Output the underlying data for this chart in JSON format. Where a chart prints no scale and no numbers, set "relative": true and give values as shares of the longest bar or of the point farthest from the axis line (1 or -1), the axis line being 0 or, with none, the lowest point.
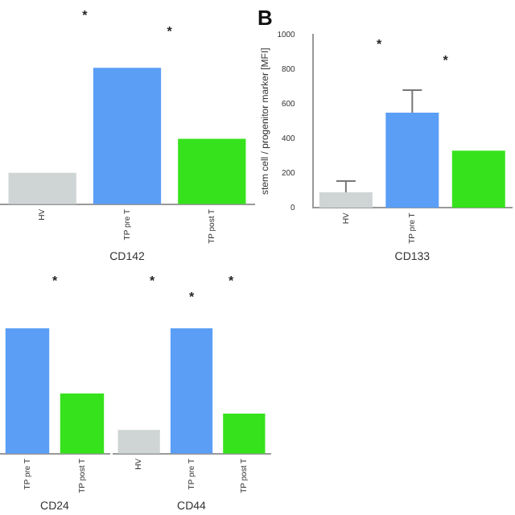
{
  "chart_data": [
    {
      "type": "bar",
      "relative": true,
      "categories": [
        "HV",
        "TP pre T",
        "TP post T"
      ],
      "xlabel": "CD142",
      "colors": [
        "#cfd4d4",
        "#5a9ef6",
        "#36e21c"
      ],
      "values": [
        0.23,
        1,
        0.48
      ],
      "annotations": [
        "*",
        "*"
      ],
      "grid": false,
      "legend": false
    },
    {
      "type": "bar",
      "title": "B",
      "categories": [
        "HV",
        "TP pre T",
        null
      ],
      "xlabel": "CD133",
      "ylabel": "stem cell / progenitor marker [MFI]",
      "colors": [
        "#cfd4d4",
        "#5a9ef6",
        "#36e21c"
      ],
      "values": [
        90,
        550,
        330
      ],
      "errors": [
        [
          90,
          155
        ],
        [
          550,
          680
        ],
        null
      ],
      "ylim": [
        0,
        1000
      ],
      "yticks": [
        0,
        200,
        400,
        600,
        800,
        1000
      ],
      "annotations": [
        "*",
        "*"
      ],
      "grid": false,
      "legend": false
    },
    {
      "type": "bar",
      "relative": true,
      "categories": [
        "TP pre T",
        "TP post T"
      ],
      "xlabel": "CD24",
      "colors": [
        "#5a9ef6",
        "#36e21c"
      ],
      "values": [
        1,
        0.48
      ],
      "annotations": [
        "*"
      ],
      "grid": false,
      "legend": false
    },
    {
      "type": "bar",
      "relative": true,
      "categories": [
        "HV",
        "TP pre T",
        "TP post T"
      ],
      "xlabel": "CD44",
      "colors": [
        "#cfd4d4",
        "#5a9ef6",
        "#36e21c"
      ],
      "values": [
        0.19,
        1,
        0.32
      ],
      "annotations": [
        "*",
        "*",
        "*"
      ],
      "grid": false,
      "legend": false
    }
  ]
}
